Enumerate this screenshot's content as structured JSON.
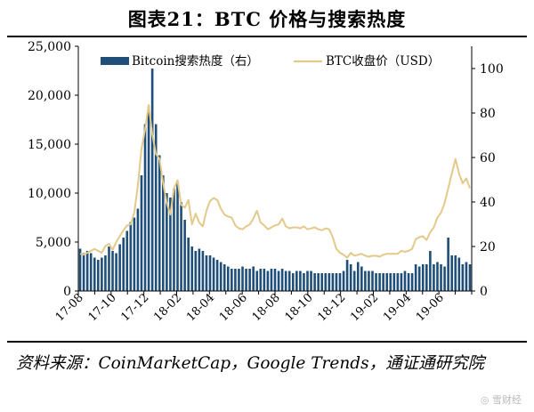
{
  "header": {
    "title": "图表21：BTC 价格与搜索热度"
  },
  "footer": {
    "source": "资料来源：CoinMarketCap，Google Trends，通证通研究院",
    "watermark": "◎ 雪财经"
  },
  "colors": {
    "bar": "#1f4e79",
    "line": "#e3c98a",
    "axis": "#000000"
  },
  "chart_data": {
    "type": "bar+line",
    "title": "图表21：BTC 价格与搜索热度",
    "legend_position": "top",
    "grid": false,
    "x_tick_labels": [
      "17-08",
      "17-10",
      "17-12",
      "18-02",
      "18-04",
      "18-06",
      "18-08",
      "18-10",
      "18-12",
      "19-02",
      "19-04",
      "19-06"
    ],
    "y_left": {
      "ticks": [
        "0",
        "5,000",
        "10,000",
        "15,000",
        "20,000",
        "25,000"
      ],
      "range": [
        0,
        25000
      ]
    },
    "y_right": {
      "ticks": [
        "0",
        "20",
        "40",
        "60",
        "80",
        "100"
      ],
      "range": [
        0,
        110
      ]
    },
    "series": [
      {
        "name": "Bitcoin搜索热度（右）",
        "type": "bar",
        "axis": "right",
        "values": [
          19,
          17,
          18,
          17,
          15,
          14,
          15,
          16,
          20,
          18,
          17,
          21,
          24,
          27,
          31,
          33,
          37,
          52,
          75,
          83,
          100,
          75,
          61,
          52,
          44,
          42,
          46,
          49,
          40,
          32,
          24,
          20,
          18,
          19,
          18,
          16,
          16,
          15,
          14,
          13,
          12,
          11,
          10,
          10,
          10,
          11,
          10,
          10,
          11,
          9,
          10,
          10,
          9,
          10,
          10,
          9,
          10,
          9,
          9,
          8,
          9,
          9,
          8,
          9,
          9,
          8,
          8,
          8,
          8,
          8,
          8,
          8,
          8,
          9,
          14,
          12,
          9,
          13,
          11,
          9,
          9,
          9,
          8,
          8,
          8,
          8,
          8,
          8,
          8,
          8,
          9,
          8,
          8,
          12,
          11,
          12,
          12,
          18,
          12,
          13,
          12,
          11,
          24,
          16,
          16,
          15,
          12,
          13,
          12
        ]
      },
      {
        "name": "BTC收盘价（USD）",
        "type": "line",
        "axis": "left",
        "x": [
          0,
          1,
          2,
          3,
          4,
          5,
          6,
          7,
          8,
          9,
          10,
          11,
          12,
          13,
          14,
          15,
          16,
          17,
          18,
          19,
          20,
          21,
          22,
          23,
          24,
          25,
          26,
          27,
          28,
          29,
          30,
          31,
          32,
          33,
          34,
          35,
          36,
          37,
          38,
          39,
          40,
          41,
          42,
          43,
          44,
          45,
          46,
          47,
          48,
          49,
          50,
          51,
          52,
          53,
          54,
          55,
          56,
          57,
          58,
          59,
          60,
          61,
          62,
          63,
          64,
          65,
          66,
          67,
          68,
          69,
          70,
          71,
          72,
          73,
          74,
          75,
          76,
          77,
          78,
          79,
          80,
          81,
          82,
          83,
          84,
          85,
          86,
          87,
          88,
          89,
          90,
          91,
          92,
          93,
          94,
          95,
          96,
          97,
          98,
          99,
          100,
          101,
          102,
          103,
          104,
          105,
          106,
          107,
          108
        ],
        "values": [
          3800,
          3700,
          3900,
          4100,
          4300,
          4100,
          3900,
          4600,
          4800,
          4200,
          5000,
          5600,
          6200,
          6700,
          6800,
          8000,
          10800,
          14500,
          16500,
          19000,
          16000,
          14000,
          13500,
          11000,
          9000,
          7800,
          10500,
          11300,
          8800,
          8500,
          9300,
          6800,
          7900,
          7000,
          6600,
          8200,
          9200,
          9500,
          9300,
          8400,
          7800,
          7600,
          7500,
          6700,
          6400,
          6300,
          6600,
          6800,
          7400,
          8200,
          7000,
          6700,
          6300,
          6500,
          6700,
          6800,
          7400,
          6600,
          6400,
          6500,
          6500,
          6400,
          6600,
          6300,
          6400,
          6500,
          6300,
          6200,
          6400,
          6300,
          5500,
          4300,
          3900,
          3700,
          3400,
          3900,
          3600,
          3700,
          3800,
          3600,
          3500,
          3600,
          3600,
          3500,
          3700,
          3800,
          3800,
          3800,
          3800,
          4100,
          4000,
          4100,
          4300,
          5300,
          5500,
          5600,
          5200,
          6000,
          6500,
          7500,
          8000,
          9000,
          10500,
          12000,
          13500,
          12000,
          11000,
          11500,
          10500
        ]
      }
    ]
  }
}
